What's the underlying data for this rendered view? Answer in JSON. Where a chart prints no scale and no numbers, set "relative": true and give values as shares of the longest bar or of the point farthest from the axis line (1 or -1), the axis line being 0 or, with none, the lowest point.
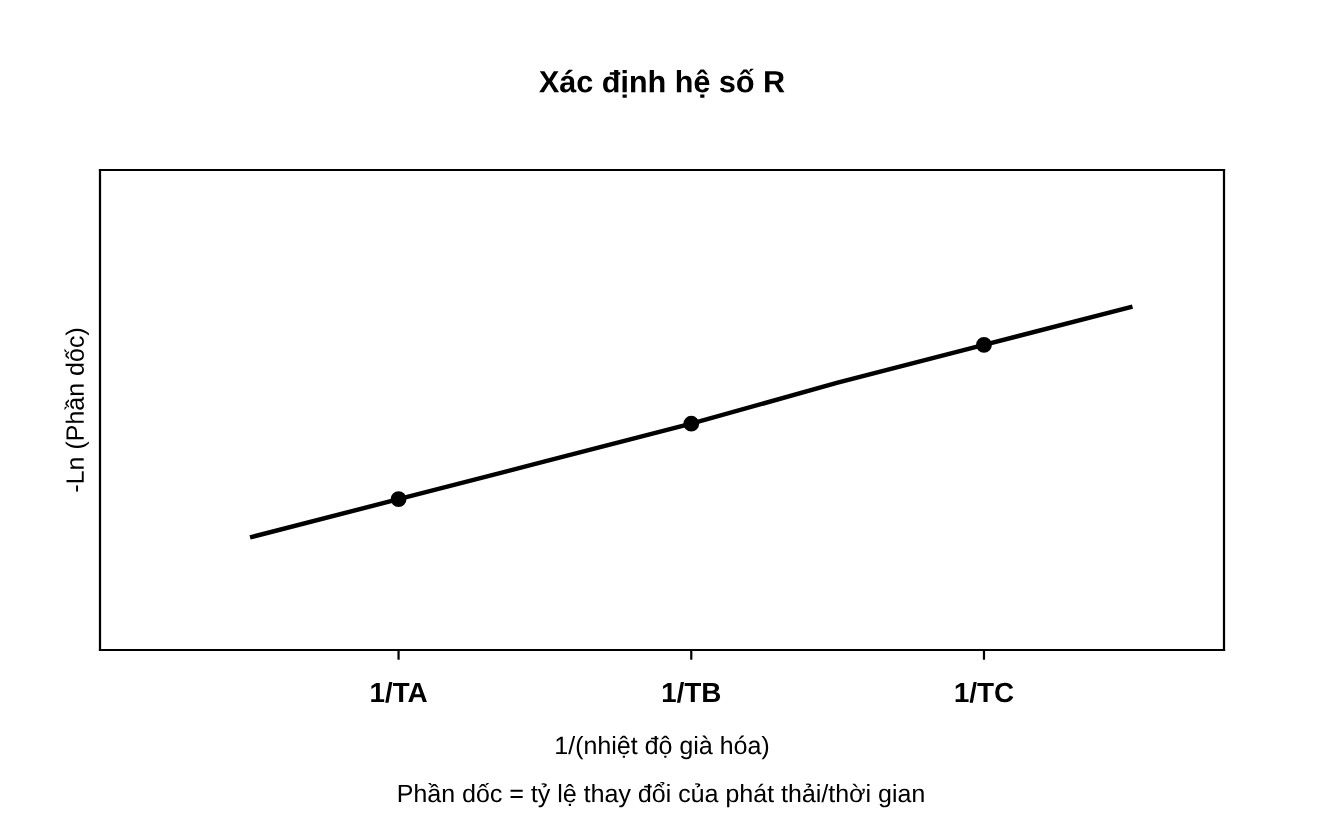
{
  "chart_data": {
    "type": "scatter",
    "title": "Xác định hệ số R",
    "xlabel": "1/(nhiệt độ già hóa)",
    "ylabel": "-Ln (Phần dốc)",
    "annotations": [
      "Phần dốc = tỷ lệ thay đổi của phát thải/thời gian"
    ],
    "relative": true,
    "grid": false,
    "legend": false,
    "categories": [
      null,
      null,
      "1/TA",
      null,
      "1/TB",
      null,
      "1/TC",
      null,
      null
    ],
    "series": [
      {
        "color": "#000000",
        "marker": "circle",
        "values": [
          null,
          null,
          0.44,
          null,
          0.66,
          null,
          0.89,
          null,
          null
        ]
      },
      {
        "type": "line",
        "color": "#000000",
        "line_style": "solid",
        "marker": "none",
        "values": [
          null,
          0.33,
          0.44,
          0.55,
          0.66,
          0.78,
          0.89,
          1.0,
          null
        ]
      }
    ]
  }
}
